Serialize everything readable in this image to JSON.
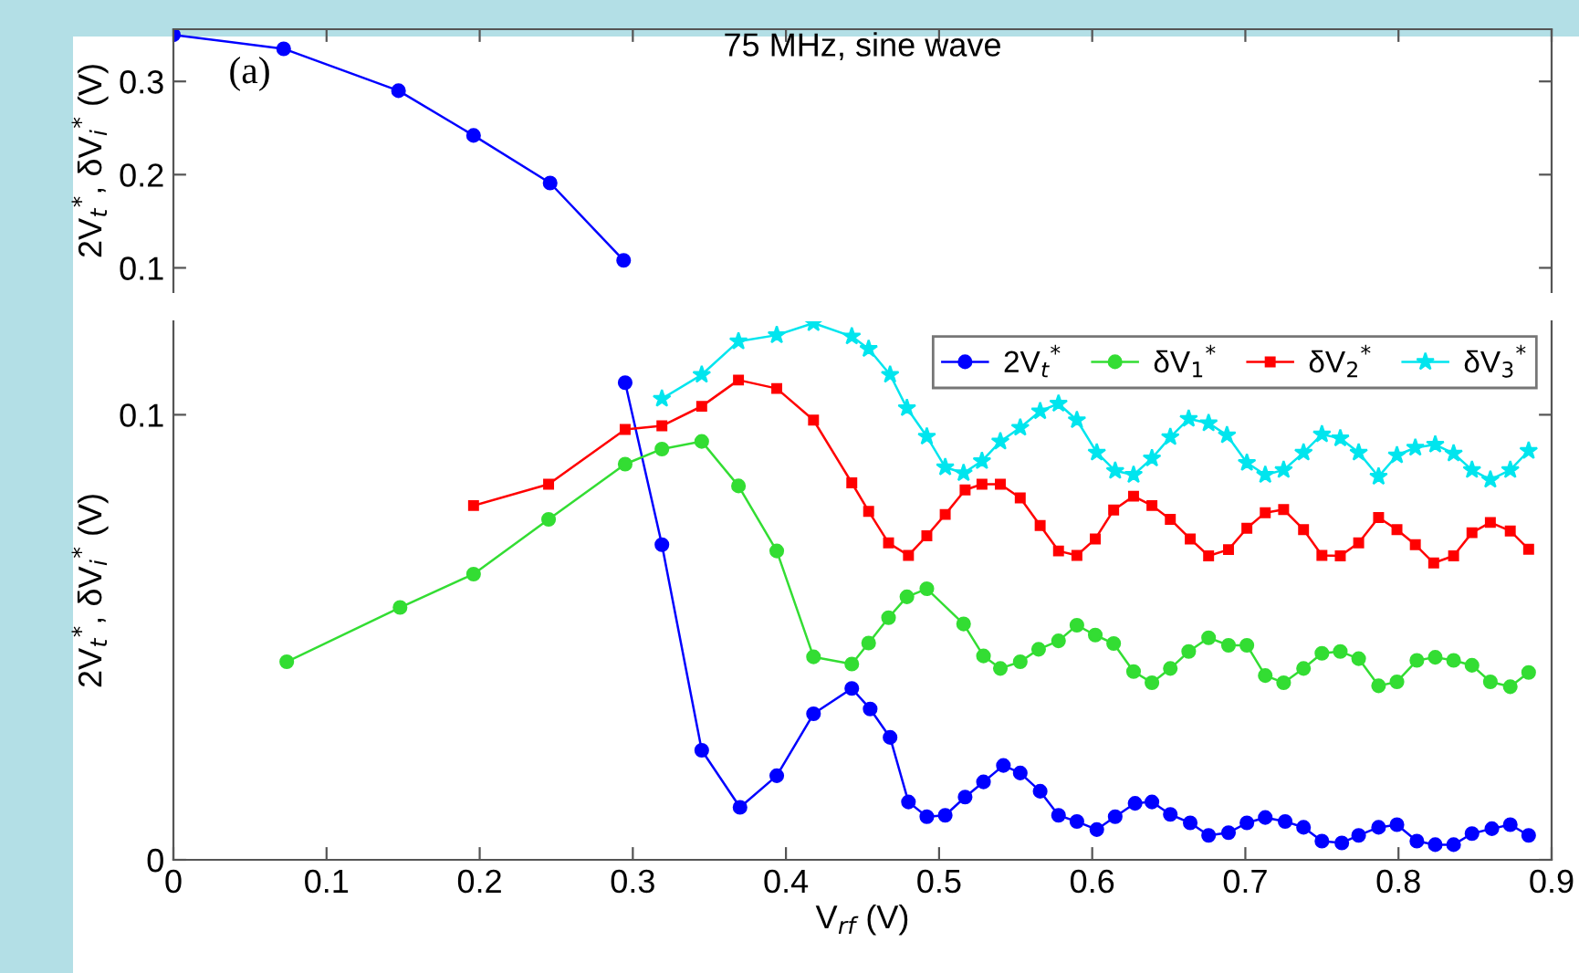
{
  "chart_data": [
    {
      "type": "line",
      "xlim": [
        0,
        0.9
      ],
      "xticks": [
        0,
        0.1,
        0.2,
        0.3,
        0.4,
        0.5,
        0.6,
        0.7,
        0.8,
        0.9
      ],
      "ylim": [
        0.074,
        0.356
      ],
      "yticks": [
        0.1,
        0.2,
        0.3
      ],
      "tick_labels": "y",
      "ylabel": "2V$_{t}$$^{*}$, δV$_{i}$$^{*}$ (V)",
      "grid": false,
      "legend": false,
      "annotations": [
        "(a)",
        "75 MHz, sine wave"
      ],
      "series": [
        {
          "color": "#0000ff",
          "marker": "circle",
          "x": [
            0,
            0.072,
            0.147,
            0.196,
            0.246,
            0.294
          ],
          "values": [
            0.35,
            0.335,
            0.29,
            0.242,
            0.191,
            0.108
          ]
        }
      ]
    },
    {
      "type": "line",
      "xlim": [
        0,
        0.9
      ],
      "xticks": [
        0,
        0.1,
        0.2,
        0.3,
        0.4,
        0.5,
        0.6,
        0.7,
        0.8,
        0.9
      ],
      "ylim": [
        0,
        0.121
      ],
      "yticks": [
        0,
        0.1
      ],
      "xlabel": "V$_{rf}$ (V)",
      "ylabel": "2V$_{t}$$^{*}$, δV$_{i}$$^{*}$ (V)",
      "grid": false,
      "legend": "top right",
      "series": [
        {
          "name": "2V$_{t}$$^{*}$",
          "color": "#0000ff",
          "marker": "circle",
          "x": [
            0.295,
            0.319,
            0.345,
            0.37,
            0.394,
            0.418,
            0.443,
            0.455,
            0.468,
            0.48,
            0.492,
            0.504,
            0.517,
            0.529,
            0.542,
            0.553,
            0.566,
            0.578,
            0.59,
            0.603,
            0.615,
            0.628,
            0.639,
            0.651,
            0.664,
            0.676,
            0.689,
            0.701,
            0.713,
            0.726,
            0.738,
            0.75,
            0.763,
            0.774,
            0.787,
            0.799,
            0.812,
            0.824,
            0.836,
            0.848,
            0.861,
            0.873,
            0.885
          ],
          "values": [
            0.1072,
            0.0708,
            0.0246,
            0.0118,
            0.0189,
            0.0328,
            0.0385,
            0.0339,
            0.0275,
            0.013,
            0.0097,
            0.01,
            0.0141,
            0.0175,
            0.0212,
            0.0195,
            0.0154,
            0.01,
            0.0086,
            0.0068,
            0.0097,
            0.0127,
            0.013,
            0.0102,
            0.0083,
            0.0055,
            0.0061,
            0.0083,
            0.0095,
            0.0086,
            0.0073,
            0.0042,
            0.0038,
            0.0055,
            0.0073,
            0.0079,
            0.0042,
            0.0034,
            0.0034,
            0.0059,
            0.007,
            0.0079,
            0.0055
          ]
        },
        {
          "name": "δV$_{1}$$^{*}$",
          "color": "#33dd33",
          "marker": "circle",
          "x": [
            0.074,
            0.148,
            0.196,
            0.245,
            0.295,
            0.319,
            0.345,
            0.369,
            0.394,
            0.418,
            0.443,
            0.454,
            0.467,
            0.479,
            0.492,
            0.516,
            0.529,
            0.54,
            0.553,
            0.565,
            0.578,
            0.59,
            0.602,
            0.614,
            0.627,
            0.639,
            0.651,
            0.663,
            0.676,
            0.689,
            0.701,
            0.713,
            0.725,
            0.738,
            0.75,
            0.762,
            0.774,
            0.787,
            0.799,
            0.812,
            0.824,
            0.836,
            0.848,
            0.86,
            0.873,
            0.885
          ],
          "values": [
            0.0445,
            0.0567,
            0.0642,
            0.0765,
            0.0889,
            0.0923,
            0.094,
            0.084,
            0.0694,
            0.0456,
            0.044,
            0.0487,
            0.0544,
            0.0591,
            0.0609,
            0.053,
            0.0458,
            0.043,
            0.0445,
            0.0473,
            0.0492,
            0.0527,
            0.0505,
            0.0486,
            0.0423,
            0.0398,
            0.043,
            0.0468,
            0.0499,
            0.0482,
            0.0482,
            0.0414,
            0.0398,
            0.043,
            0.0464,
            0.0468,
            0.0452,
            0.0391,
            0.04,
            0.0448,
            0.0455,
            0.0448,
            0.0437,
            0.04,
            0.0389,
            0.0421
          ]
        },
        {
          "name": "δV$_{2}$$^{*}$",
          "color": "#ff0000",
          "marker": "square",
          "x": [
            0.196,
            0.245,
            0.295,
            0.319,
            0.345,
            0.369,
            0.394,
            0.418,
            0.443,
            0.454,
            0.467,
            0.48,
            0.492,
            0.504,
            0.517,
            0.528,
            0.54,
            0.553,
            0.566,
            0.578,
            0.59,
            0.602,
            0.614,
            0.627,
            0.639,
            0.651,
            0.664,
            0.676,
            0.689,
            0.701,
            0.713,
            0.725,
            0.738,
            0.75,
            0.762,
            0.774,
            0.787,
            0.799,
            0.811,
            0.823,
            0.836,
            0.848,
            0.86,
            0.873,
            0.885
          ],
          "values": [
            0.0796,
            0.0844,
            0.0967,
            0.0975,
            0.1019,
            0.1078,
            0.1059,
            0.0988,
            0.0847,
            0.0783,
            0.0712,
            0.0684,
            0.0728,
            0.0776,
            0.0831,
            0.0844,
            0.0844,
            0.0813,
            0.0751,
            0.0694,
            0.0684,
            0.0721,
            0.0786,
            0.0817,
            0.0796,
            0.0765,
            0.0721,
            0.0683,
            0.0697,
            0.0745,
            0.078,
            0.0787,
            0.0742,
            0.0684,
            0.0683,
            0.0712,
            0.0769,
            0.0742,
            0.0708,
            0.0667,
            0.0683,
            0.0735,
            0.0758,
            0.0739,
            0.0698
          ]
        },
        {
          "name": "δV$_{3}$$^{*}$",
          "color": "#00e5ee",
          "marker": "star",
          "x": [
            0.319,
            0.345,
            0.369,
            0.394,
            0.418,
            0.443,
            0.454,
            0.468,
            0.479,
            0.492,
            0.504,
            0.516,
            0.528,
            0.54,
            0.553,
            0.566,
            0.578,
            0.59,
            0.603,
            0.615,
            0.627,
            0.639,
            0.651,
            0.663,
            0.676,
            0.688,
            0.701,
            0.713,
            0.725,
            0.738,
            0.75,
            0.762,
            0.774,
            0.787,
            0.799,
            0.811,
            0.824,
            0.836,
            0.848,
            0.86,
            0.873,
            0.885
          ],
          "values": [
            0.1036,
            0.109,
            0.1165,
            0.1179,
            0.1206,
            0.1176,
            0.1148,
            0.109,
            0.1015,
            0.0951,
            0.0882,
            0.0869,
            0.0896,
            0.094,
            0.0971,
            0.1008,
            0.1025,
            0.0988,
            0.0915,
            0.0874,
            0.0865,
            0.0902,
            0.095,
            0.0991,
            0.0981,
            0.0954,
            0.0892,
            0.0865,
            0.0876,
            0.0915,
            0.0956,
            0.0947,
            0.0915,
            0.0861,
            0.0909,
            0.0926,
            0.0933,
            0.0913,
            0.0876,
            0.0854,
            0.0876,
            0.0919
          ]
        }
      ]
    }
  ]
}
